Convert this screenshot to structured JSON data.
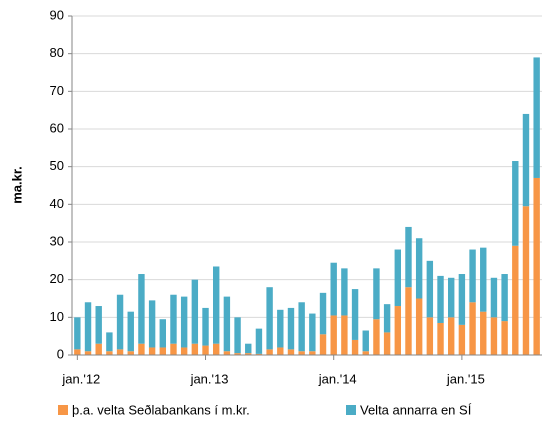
{
  "chart_data": {
    "type": "stacked_bar",
    "y_label": "ma.kr.",
    "categories": [
      "jan.'12",
      null,
      null,
      null,
      null,
      null,
      null,
      null,
      null,
      null,
      null,
      null,
      "jan.'13",
      null,
      null,
      null,
      null,
      null,
      null,
      null,
      null,
      null,
      null,
      null,
      "jan.'14",
      null,
      null,
      null,
      null,
      null,
      null,
      null,
      null,
      null,
      null,
      null,
      "jan.'15",
      null,
      null,
      null,
      null,
      null,
      null,
      null
    ],
    "series": [
      {
        "name": "þ.a. velta Seðlabankans í m.kr.",
        "color": "#f79646",
        "values": [
          1.5,
          1,
          3,
          1,
          1.5,
          1,
          3,
          2,
          2,
          3,
          2,
          3,
          2.5,
          3,
          1,
          0.5,
          0.5,
          0.3,
          1.5,
          2,
          1.5,
          1,
          1,
          5.5,
          10.5,
          10.5,
          4,
          1,
          9.5,
          6,
          13,
          18,
          15,
          10,
          8.5,
          10,
          8,
          14,
          11.5,
          10,
          9,
          29,
          39.5,
          47
        ]
      },
      {
        "name": "Velta annarra en SÍ",
        "color": "#4bacc6",
        "values": [
          8.5,
          13,
          10,
          5,
          14.5,
          10.5,
          18.5,
          12.5,
          7.5,
          13,
          13.5,
          17,
          10,
          20.5,
          14.5,
          9.5,
          2.5,
          6.7,
          16.5,
          10,
          11,
          13,
          10,
          11,
          14,
          12.5,
          13.5,
          5.5,
          13.5,
          7.5,
          15,
          16,
          16,
          15,
          12.5,
          10.5,
          13.5,
          14,
          17,
          10.5,
          12.5,
          22.5,
          24.5,
          32
        ]
      }
    ],
    "ylim": [
      0,
      90
    ],
    "yticks": [
      0,
      10,
      20,
      30,
      40,
      50,
      60,
      70,
      80,
      90
    ],
    "grid": true
  }
}
